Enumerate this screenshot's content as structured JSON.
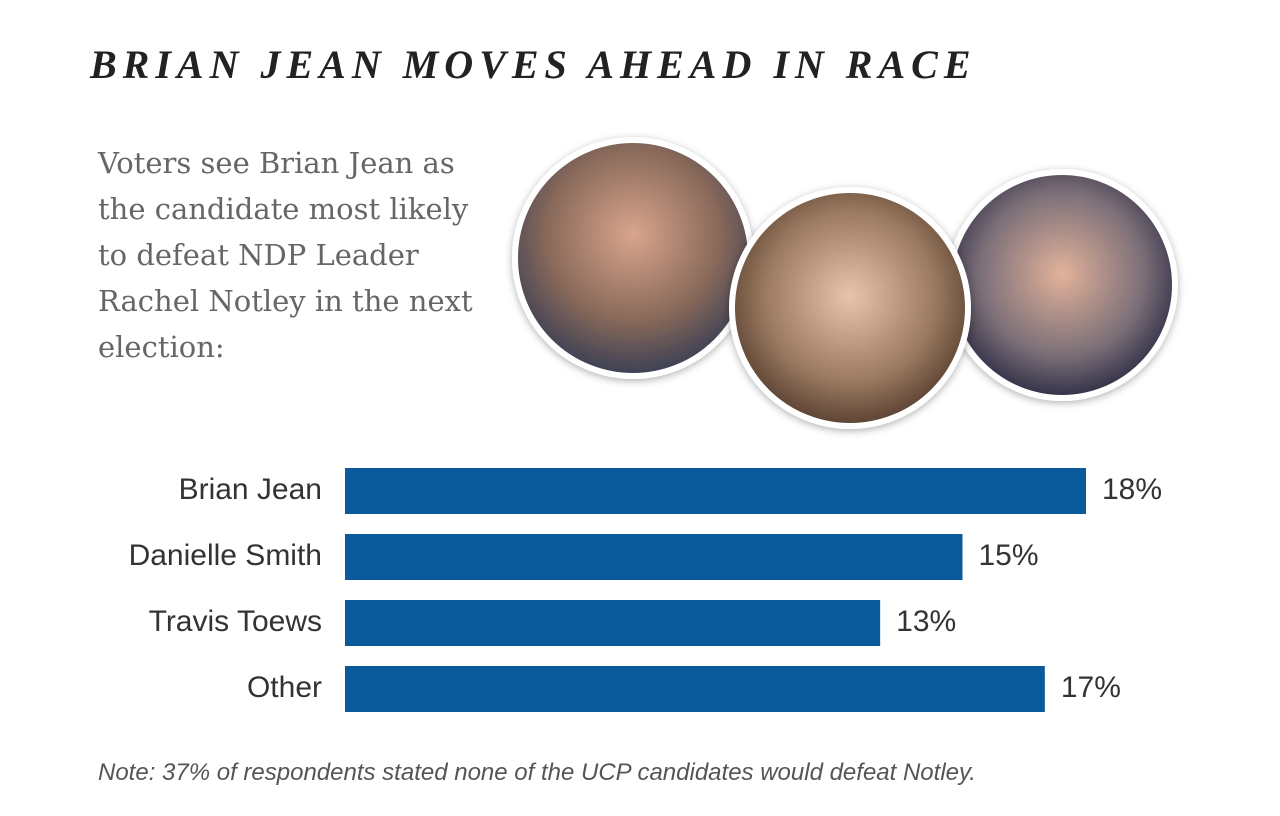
{
  "chart_data": {
    "type": "bar",
    "title": "BRIAN JEAN MOVES AHEAD IN RACE",
    "subtitle": "Voters see Brian Jean as the candidate most likely to defeat NDP Leader Rachel Notley in the next election:",
    "categories": [
      "Brian Jean",
      "Danielle Smith",
      "Travis Toews",
      "Other"
    ],
    "values": [
      18,
      15,
      13,
      17
    ],
    "value_labels": [
      "18%",
      "15%",
      "13%",
      "17%"
    ],
    "color": "#0b5b9c",
    "note": "Note: 37% of respondents stated none of the UCP candidates would defeat Notley."
  }
}
